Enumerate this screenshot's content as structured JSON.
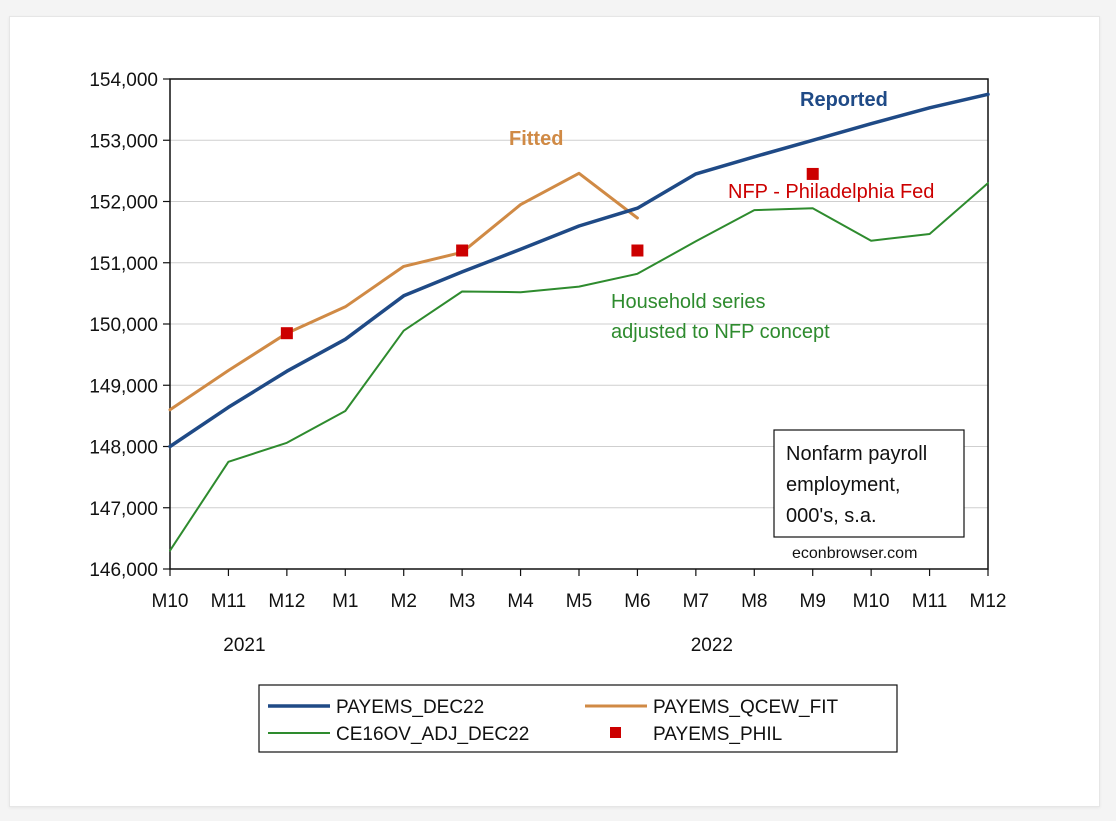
{
  "chart_data": {
    "type": "line",
    "x": [
      "M10",
      "M11",
      "M12",
      "M1",
      "M2",
      "M3",
      "M4",
      "M5",
      "M6",
      "M7",
      "M8",
      "M9",
      "M10",
      "M11",
      "M12"
    ],
    "years": [
      {
        "label": "2021",
        "at": "M11"
      },
      {
        "label": "2022",
        "at": "M7"
      }
    ],
    "ylim": [
      146000,
      154000
    ],
    "yticks": [
      146000,
      147000,
      148000,
      149000,
      150000,
      151000,
      152000,
      153000,
      154000
    ],
    "ytick_labels": [
      "146,000",
      "147,000",
      "148,000",
      "149,000",
      "150,000",
      "151,000",
      "152,000",
      "153,000",
      "154,000"
    ],
    "grid": true,
    "series": [
      {
        "name": "PAYEMS_DEC22",
        "kind": "line",
        "color": "#1f4a86",
        "width": 3.5,
        "values": [
          148000,
          148640,
          149230,
          149750,
          150460,
          150850,
          151220,
          151600,
          151890,
          152450,
          152730,
          153000,
          153270,
          153530,
          153750
        ]
      },
      {
        "name": "PAYEMS_QCEW_FIT",
        "kind": "line",
        "color": "#d08a45",
        "width": 3,
        "values": [
          148600,
          149240,
          149850,
          150280,
          150940,
          151170,
          151950,
          152460,
          151730,
          null,
          null,
          null,
          null,
          null,
          null
        ]
      },
      {
        "name": "CE16OV_ADJ_DEC22",
        "kind": "line",
        "color": "#2e8b2e",
        "width": 2,
        "values": [
          146300,
          147750,
          148060,
          148580,
          149890,
          150530,
          150520,
          150610,
          150820,
          151350,
          151860,
          151890,
          151360,
          151470,
          152300
        ]
      },
      {
        "name": "PAYEMS_PHIL",
        "kind": "marker",
        "color": "#cc0000",
        "values": [
          null,
          null,
          149850,
          null,
          null,
          151200,
          null,
          null,
          151200,
          null,
          null,
          152450,
          null,
          null,
          null
        ]
      }
    ],
    "annotations": {
      "reported": "Reported",
      "fitted": "Fitted",
      "phil": "NFP - Philadelphia Fed",
      "household_1": "Household series",
      "household_2": "adjusted to NFP concept"
    },
    "info_box": [
      "Nonfarm payroll",
      "employment,",
      "000's, s.a."
    ],
    "source": "econbrowser.com",
    "legend": {
      "position": "bottom",
      "items": [
        "PAYEMS_DEC22",
        "PAYEMS_QCEW_FIT",
        "CE16OV_ADJ_DEC22",
        "PAYEMS_PHIL"
      ]
    },
    "colors": {
      "reported": "#1f4a86",
      "fitted": "#d08a45",
      "household": "#2e8b2e",
      "phil": "#cc0000"
    }
  }
}
